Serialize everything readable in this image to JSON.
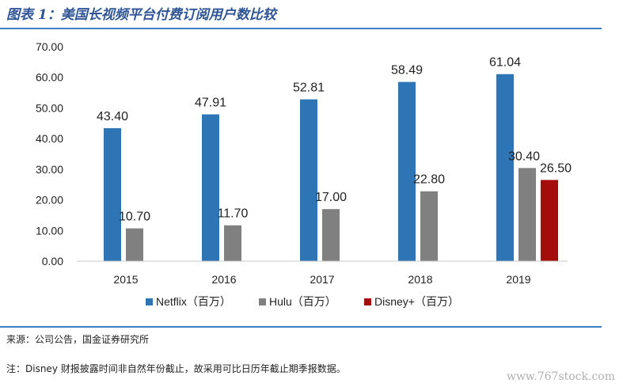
{
  "header": {
    "title": "图表 1：美国长视频平台付费订阅用户数比较"
  },
  "chart_data": {
    "type": "bar",
    "categories": [
      "2015",
      "2016",
      "2017",
      "2018",
      "2019"
    ],
    "series": [
      {
        "name": "Netflix（百万）",
        "color": "#2e75b6",
        "values": [
          43.4,
          47.91,
          52.81,
          58.49,
          61.04
        ]
      },
      {
        "name": "Hulu（百万）",
        "color": "#808080",
        "values": [
          10.7,
          11.7,
          17.0,
          22.8,
          30.4
        ]
      },
      {
        "name": "Disney+（百万）",
        "color": "#a50d0d",
        "values": [
          null,
          null,
          null,
          null,
          26.5
        ]
      }
    ],
    "ylim": [
      0,
      70
    ],
    "yticks": [
      "0.00",
      "10.00",
      "20.00",
      "30.00",
      "40.00",
      "50.00",
      "60.00",
      "70.00"
    ],
    "grid": false,
    "legend": "bottom"
  },
  "footer": {
    "source": "来源：公司公告，国金证券研究所",
    "note": "注：Disney 财报披露时间非自然年份截止，故采用可比日历年截止期季报数据。",
    "watermark": "www.767stock.com"
  }
}
